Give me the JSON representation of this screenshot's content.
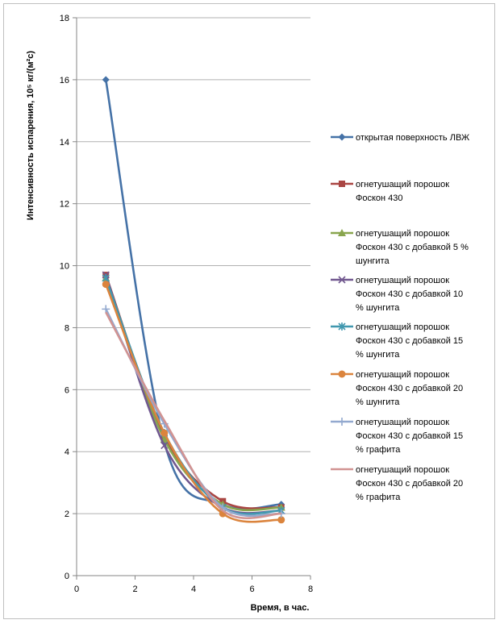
{
  "chart_data": {
    "type": "line",
    "xlabel": "Время, в час.",
    "ylabel": "Интенсивность испарения, 10⁵ кг/(м²с)",
    "xlim": [
      0,
      8
    ],
    "ylim": [
      0,
      18
    ],
    "xticks": [
      "0",
      "2",
      "4",
      "6",
      "8"
    ],
    "yticks": [
      "0",
      "2",
      "4",
      "6",
      "8",
      "10",
      "12",
      "14",
      "16",
      "18"
    ],
    "x": [
      1,
      3,
      5,
      7
    ],
    "grid": "horizontal",
    "legend_position": "right",
    "series": [
      {
        "name": "открытая поверхность ЛВЖ",
        "name_lines": [
          "открытая поверхность ЛВЖ"
        ],
        "values": [
          16,
          4.3,
          2.3,
          2.3
        ],
        "color": "#4572A7",
        "marker": "diamond"
      },
      {
        "name": "огнетушащий порошок Фоскон 430",
        "name_lines": [
          "огнетушащий порошок",
          "Фоскон 430"
        ],
        "values": [
          9.7,
          4.5,
          2.4,
          2.2
        ],
        "color": "#AA4643",
        "marker": "square"
      },
      {
        "name": "огнетушащий порошок Фоскон 430 с добавкой 5 % шунгита",
        "name_lines": [
          "огнетушащий порошок",
          "Фоскон 430 с добавкой 5 %",
          "шунгита"
        ],
        "values": [
          9.6,
          4.4,
          2.3,
          2.2
        ],
        "color": "#89A54E",
        "marker": "triangle"
      },
      {
        "name": "огнетушащий порошок Фоскон 430 с добавкой 10 % шунгита",
        "name_lines": [
          "огнетушащий порошок",
          "Фоскон 430 с добавкой 10",
          "% шунгита"
        ],
        "values": [
          9.7,
          4.2,
          2.2,
          2.1
        ],
        "color": "#71588F",
        "marker": "x"
      },
      {
        "name": "огнетушащий порошок Фоскон 430 с добавкой 15 % шунгита",
        "name_lines": [
          "огнетушащий порошок",
          "Фоскон 430 с добавкой 15",
          "% шунгита"
        ],
        "values": [
          9.6,
          4.6,
          2.2,
          2.1
        ],
        "color": "#4198AF",
        "marker": "star"
      },
      {
        "name": "огнетушащий порошок Фоскон 430 с добавкой 20 % шунгита",
        "name_lines": [
          "огнетушащий порошок",
          "Фоскон 430 с добавкой 20",
          "% шунгита"
        ],
        "values": [
          9.4,
          4.6,
          2.0,
          1.8
        ],
        "color": "#DB843D",
        "marker": "circle"
      },
      {
        "name": "огнетушащий порошок Фоскон 430 с добавкой 15 % графита",
        "name_lines": [
          "огнетушащий порошок",
          "Фоскон 430 с добавкой 15",
          "% графита"
        ],
        "values": [
          8.6,
          4.9,
          2.2,
          2.0
        ],
        "color": "#93A9CF",
        "marker": "plus"
      },
      {
        "name": "огнетушащий порошок Фоскон 430 с добавкой 20 % графита",
        "name_lines": [
          "огнетушащий порошок",
          "Фоскон 430 с добавкой 20",
          "% графита"
        ],
        "values": [
          8.5,
          5.0,
          2.1,
          2.0
        ],
        "color": "#D19392",
        "marker": "none"
      }
    ]
  }
}
